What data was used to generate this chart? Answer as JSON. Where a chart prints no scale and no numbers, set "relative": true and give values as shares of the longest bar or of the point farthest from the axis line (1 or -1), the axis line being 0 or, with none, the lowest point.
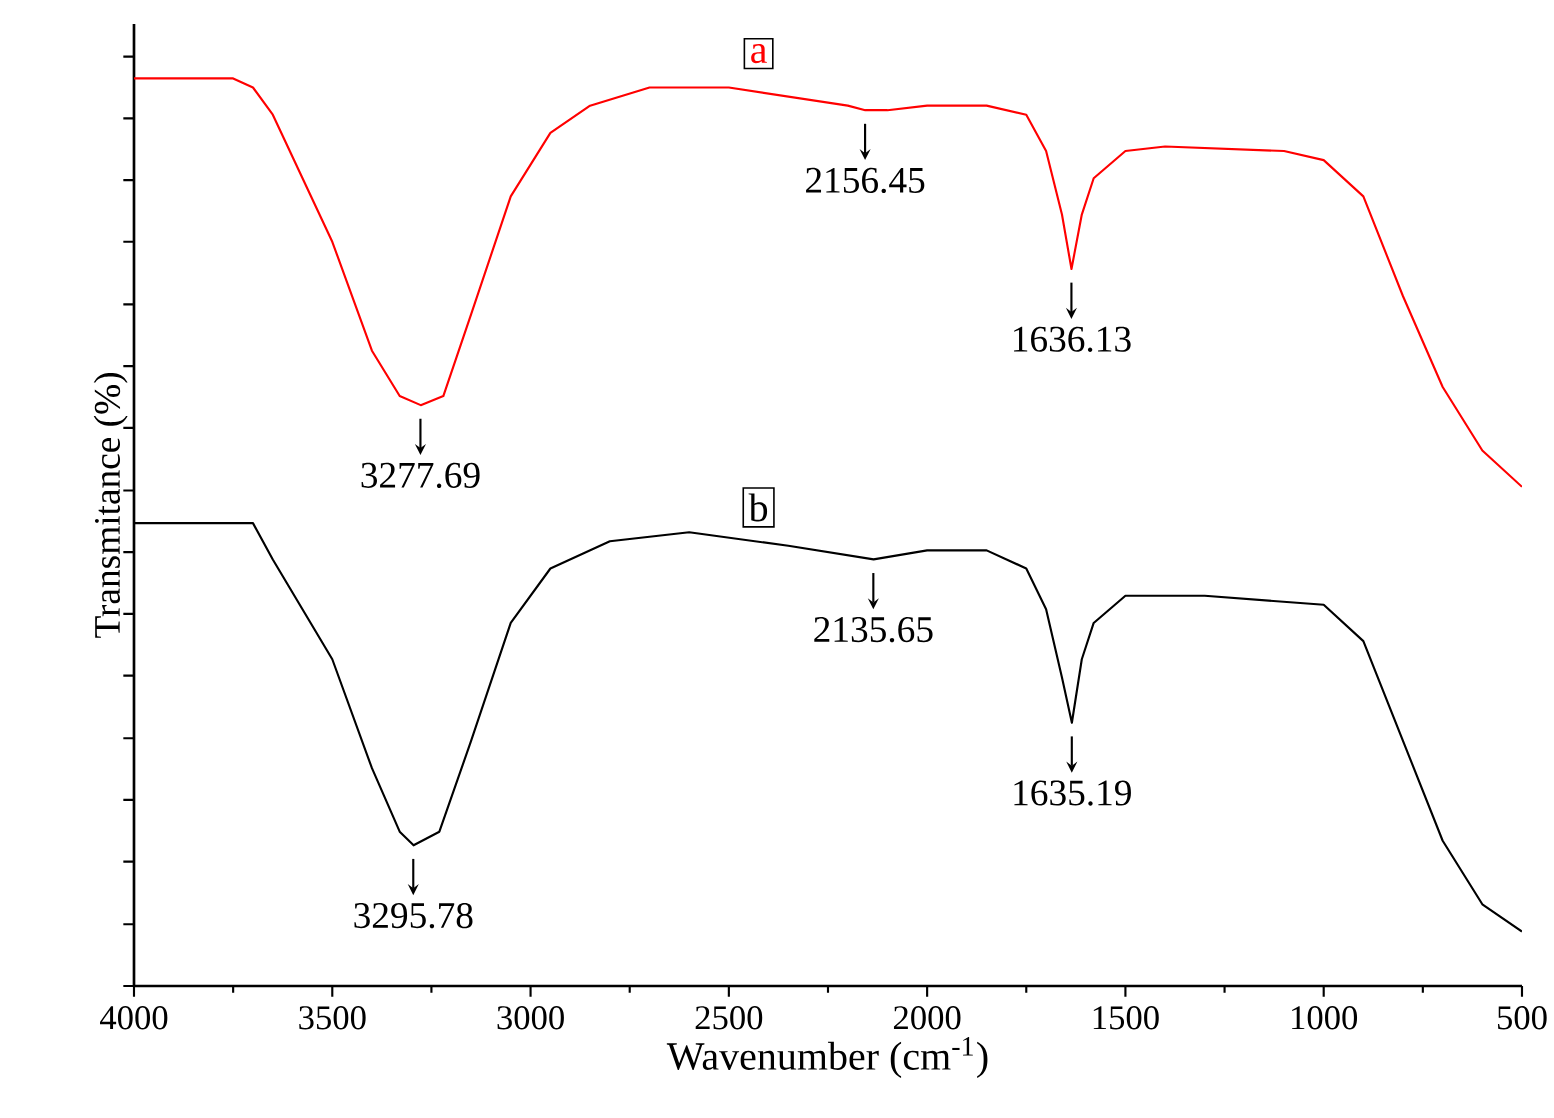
{
  "chart_data": {
    "type": "line",
    "relative": true,
    "xlabel": "Wavenumber (cm$^{-1}$)",
    "ylabel": "Transmitance (%)",
    "xlim": [
      4000,
      500
    ],
    "xticks": [
      4000,
      3500,
      3000,
      2500,
      2000,
      1500,
      1000,
      500
    ],
    "tick_labels": "x",
    "grid": false,
    "series": [
      {
        "name": "a",
        "color": "#ff0000",
        "x": [
          4000,
          3750,
          3700,
          3650,
          3500,
          3400,
          3330,
          3277,
          3220,
          3150,
          3050,
          2950,
          2850,
          2700,
          2500,
          2350,
          2200,
          2156,
          2100,
          2000,
          1850,
          1750,
          1700,
          1660,
          1636,
          1610,
          1580,
          1500,
          1400,
          1100,
          1000,
          900,
          800,
          700,
          600,
          500
        ],
        "values": [
          1.0,
          1.0,
          0.99,
          0.96,
          0.82,
          0.7,
          0.65,
          0.64,
          0.65,
          0.74,
          0.87,
          0.94,
          0.97,
          0.99,
          0.99,
          0.98,
          0.97,
          0.965,
          0.965,
          0.97,
          0.97,
          0.96,
          0.92,
          0.85,
          0.79,
          0.85,
          0.89,
          0.92,
          0.925,
          0.92,
          0.91,
          0.87,
          0.76,
          0.66,
          0.59,
          0.55
        ]
      },
      {
        "name": "b",
        "color": "#000000",
        "x": [
          4000,
          3700,
          3650,
          3500,
          3400,
          3330,
          3295,
          3230,
          3150,
          3050,
          2950,
          2800,
          2600,
          2350,
          2135,
          2000,
          1850,
          1750,
          1700,
          1660,
          1635,
          1610,
          1580,
          1500,
          1300,
          1000,
          900,
          800,
          700,
          600,
          500
        ],
        "values": [
          0.51,
          0.51,
          0.47,
          0.36,
          0.24,
          0.17,
          0.155,
          0.17,
          0.27,
          0.4,
          0.46,
          0.49,
          0.5,
          0.485,
          0.47,
          0.48,
          0.48,
          0.46,
          0.415,
          0.34,
          0.29,
          0.36,
          0.4,
          0.43,
          0.43,
          0.42,
          0.38,
          0.27,
          0.16,
          0.09,
          0.06
        ]
      }
    ],
    "annotations": [
      {
        "text": "3277.69",
        "x": 3277.69,
        "y": 0.64
      },
      {
        "text": "2156.45",
        "x": 2156.45,
        "y": 0.965
      },
      {
        "text": "1636.13",
        "x": 1636.13,
        "y": 0.79
      },
      {
        "text": "3295.78",
        "x": 3295.78,
        "y": 0.155
      },
      {
        "text": "2135.65",
        "x": 2135.65,
        "y": 0.47
      },
      {
        "text": "1635.19",
        "x": 1635.19,
        "y": 0.29
      }
    ]
  }
}
